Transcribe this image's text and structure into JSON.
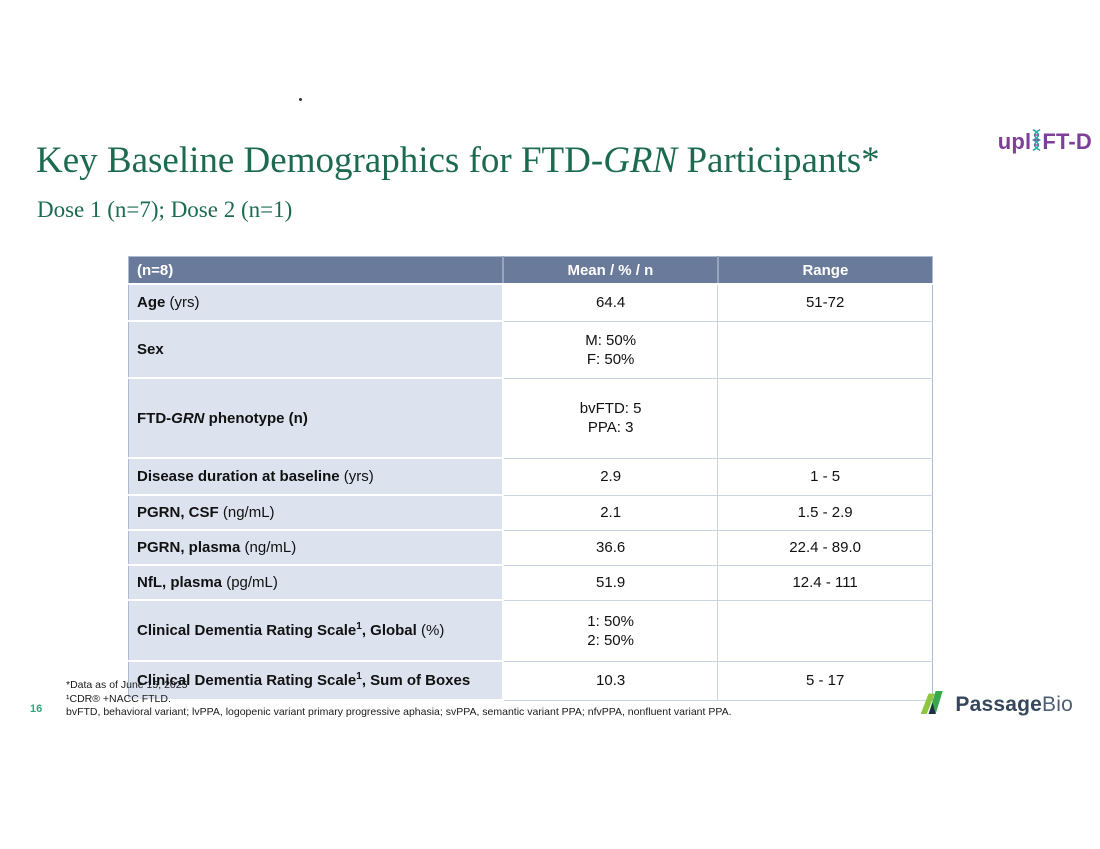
{
  "stray_dot": ".",
  "header_logo": {
    "prefix": "upl",
    "suffix": "FT-D",
    "text_color": "#7d3f98",
    "dna_icon_color": "#2fa9a8"
  },
  "title": {
    "segments": [
      {
        "t": "Key Baseline Demographics for FTD-"
      },
      {
        "t": "GRN",
        "i": 1
      },
      {
        "t": " Participants*"
      }
    ],
    "color": "#1d6b4f"
  },
  "subtitle": "Dose 1 (n=7); Dose 2 (n=1)",
  "table": {
    "headers": [
      "(n=8)",
      "Mean / % / n",
      "Range"
    ],
    "header_bg": "#6a7a9b",
    "label_col_bg": "#dce3ef",
    "rows": [
      {
        "label": [
          {
            "t": "Age",
            "b": 1
          },
          {
            "t": " (yrs)"
          }
        ],
        "mean": [
          "64.4"
        ],
        "range": "51-72"
      },
      {
        "label": [
          {
            "t": "Sex",
            "b": 1
          }
        ],
        "mean": [
          "M: 50%",
          "F: 50%"
        ],
        "range": ""
      },
      {
        "label": [
          {
            "t": "FTD-",
            "b": 1
          },
          {
            "t": "GRN",
            "b": 1,
            "i": 1
          },
          {
            "t": " phenotype (n)",
            "b": 1
          }
        ],
        "mean": [
          "bvFTD: 5",
          "PPA: 3"
        ],
        "range": ""
      },
      {
        "label": [
          {
            "t": "Disease duration at baseline",
            "b": 1
          },
          {
            "t": " (yrs)"
          }
        ],
        "mean": [
          "2.9"
        ],
        "range": "1 - 5"
      },
      {
        "label": [
          {
            "t": "PGRN, CSF",
            "b": 1
          },
          {
            "t": " (ng/mL)"
          }
        ],
        "mean": [
          "2.1"
        ],
        "range": "1.5 - 2.9"
      },
      {
        "label": [
          {
            "t": "PGRN, plasma",
            "b": 1
          },
          {
            "t": " (ng/mL)"
          }
        ],
        "mean": [
          "36.6"
        ],
        "range": "22.4 - 89.0"
      },
      {
        "label": [
          {
            "t": "NfL, plasma",
            "b": 1
          },
          {
            "t": " (pg/mL)"
          }
        ],
        "mean": [
          "51.9"
        ],
        "range": "12.4 - 111"
      },
      {
        "label": [
          {
            "t": "Clinical Dementia Rating Scale",
            "b": 1
          },
          {
            "t": "1",
            "b": 1,
            "sup": 1
          },
          {
            "t": ", Global",
            "b": 1
          },
          {
            "t": " (%)"
          }
        ],
        "mean": [
          "1: 50%",
          "2: 50%"
        ],
        "range": ""
      },
      {
        "label": [
          {
            "t": "Clinical Dementia Rating Scale",
            "b": 1
          },
          {
            "t": "1",
            "b": 1,
            "sup": 1
          },
          {
            "t": ", Sum of Boxes",
            "b": 1
          }
        ],
        "mean": [
          "10.3"
        ],
        "range": "5 - 17"
      }
    ]
  },
  "footnotes": [
    "*Data as of June 15, 2025",
    "¹CDR® +NACC FTLD.",
    "bvFTD, behavioral variant; lvPPA, logopenic variant primary progressive aphasia; svPPA, semantic variant PPA; nfvPPA, nonfluent variant PPA."
  ],
  "page_number": "16",
  "footer_brand": {
    "name_bold": "Passage",
    "name_light": "Bio",
    "icon_light_green": "#8dc63f",
    "icon_dark_green": "#37a94c",
    "icon_navy": "#1f3044"
  }
}
